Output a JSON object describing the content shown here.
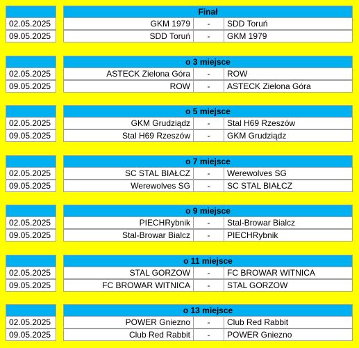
{
  "sections": [
    {
      "title": "Finał",
      "matches": [
        {
          "date": "02.05.2025",
          "home": "GKM 1979",
          "sep": "-",
          "away": "SDD Toruń"
        },
        {
          "date": "09.05.2025",
          "home": "SDD Toruń",
          "sep": "-",
          "away": "GKM 1979"
        }
      ]
    },
    {
      "title": "o 3 miejsce",
      "matches": [
        {
          "date": "02.05.2025",
          "home": "ASTECK Zielona Góra",
          "sep": "-",
          "away": "ROW"
        },
        {
          "date": "09.05.2025",
          "home": "ROW",
          "sep": "-",
          "away": "ASTECK Zielona Góra"
        }
      ]
    },
    {
      "title": "o 5 miejsce",
      "matches": [
        {
          "date": "02.05.2025",
          "home": "GKM Grudziądz",
          "sep": "-",
          "away": "Stal H69 Rzeszów"
        },
        {
          "date": "09.05.2025",
          "home": "Stal H69 Rzeszów",
          "sep": "-",
          "away": "GKM Grudziądz"
        }
      ]
    },
    {
      "title": "o 7 miejsce",
      "matches": [
        {
          "date": "02.05.2025",
          "home": "SC STAL BIAŁCZ",
          "sep": "-",
          "away": "Werewolves SG"
        },
        {
          "date": "09.05.2025",
          "home": "Werewolves SG",
          "sep": "-",
          "away": "SC STAL BIAŁCZ"
        }
      ]
    },
    {
      "title": "o 9 miejsce",
      "matches": [
        {
          "date": "02.05.2025",
          "home": "PIECHRybnik",
          "sep": "-",
          "away": "Stal-Browar Bialcz"
        },
        {
          "date": "09.05.2025",
          "home": "Stal-Browar Bialcz",
          "sep": "-",
          "away": "PIECHRybnik"
        }
      ]
    },
    {
      "title": "o 11 miejsce",
      "matches": [
        {
          "date": "02.05.2025",
          "home": "STAL GORZOW",
          "sep": "-",
          "away": "FC BROWAR WITNICA"
        },
        {
          "date": "09.05.2025",
          "home": "FC BROWAR WITNICA",
          "sep": "-",
          "away": "STAL GORZOW"
        }
      ]
    },
    {
      "title": "o 13 miejsce",
      "matches": [
        {
          "date": "02.05.2025",
          "home": "POWER Gniezno",
          "sep": "-",
          "away": "Club Red Rabbit"
        },
        {
          "date": "09.05.2025",
          "home": "Club Red Rabbit",
          "sep": "-",
          "away": "POWER Gniezno"
        }
      ]
    }
  ]
}
